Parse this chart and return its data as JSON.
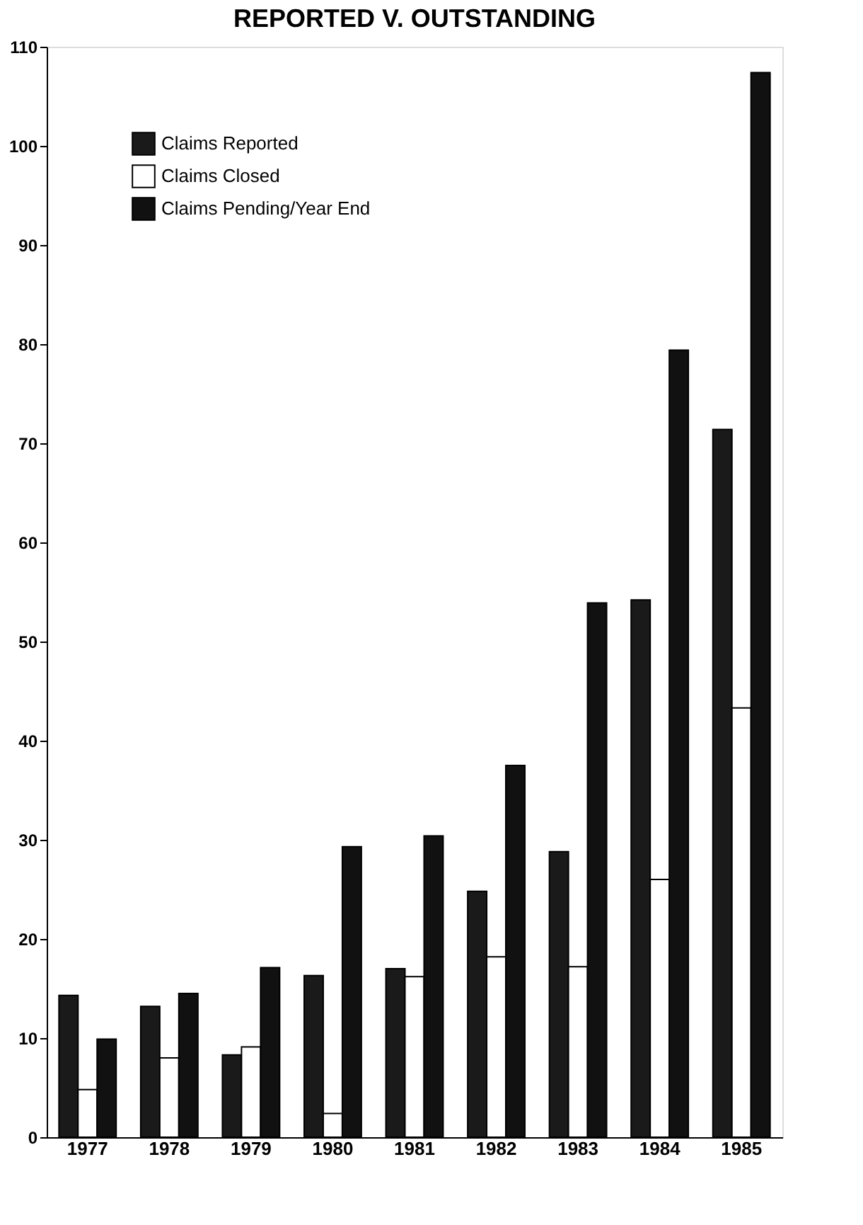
{
  "chart_data": {
    "type": "bar",
    "title": "REPORTED V. OUTSTANDING",
    "categories": [
      "1977",
      "1978",
      "1979",
      "1980",
      "1981",
      "1982",
      "1983",
      "1984",
      "1985"
    ],
    "series": [
      {
        "name": "Claims Reported",
        "color": "#1a1a1a",
        "values": [
          14.3,
          13.2,
          8.3,
          16.3,
          17.0,
          24.8,
          28.8,
          54.2,
          71.4
        ]
      },
      {
        "name": "Claims Closed",
        "color": "#ffffff",
        "values": [
          4.8,
          8.0,
          9.1,
          2.4,
          16.2,
          18.2,
          17.2,
          26.0,
          43.3
        ]
      },
      {
        "name": "Claims Pending/Year End",
        "color": "#111111",
        "values": [
          9.9,
          14.5,
          17.1,
          29.3,
          30.4,
          37.5,
          53.9,
          79.4,
          107.4
        ]
      }
    ],
    "ylim": [
      0,
      110
    ],
    "yticks": [
      0,
      10,
      20,
      30,
      40,
      50,
      60,
      70,
      80,
      90,
      100,
      110
    ],
    "grid": false,
    "legend": "top left"
  }
}
